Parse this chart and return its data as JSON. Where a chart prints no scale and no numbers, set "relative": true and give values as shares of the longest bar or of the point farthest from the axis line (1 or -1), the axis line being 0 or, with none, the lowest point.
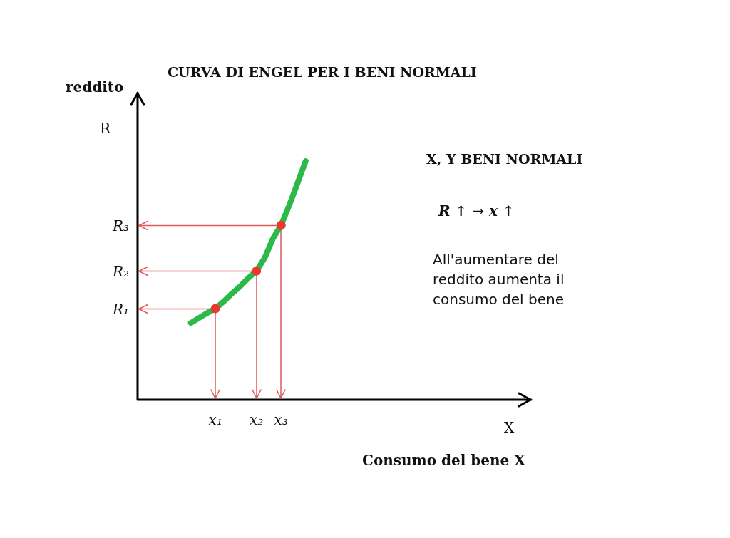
{
  "chart_data": {
    "type": "line",
    "title": "CURVA DI ENGEL PER I BENI NORMALI",
    "ylabel": "reddito",
    "xlabel": "Consumo del bene X",
    "annotations": [
      "R",
      "X",
      "X, Y BENI NORMALI",
      "R ↑ →   x ↑",
      "All'aumentare del reddito aumenta il consumo del bene"
    ],
    "relative": true,
    "tick_labels": "x",
    "legend": false,
    "marker": "circle",
    "line_style": "solid",
    "categories": [
      null,
      null,
      null,
      null,
      null,
      null,
      null,
      null,
      null,
      "x₁",
      null,
      null,
      null,
      null,
      "x₂",
      null,
      null,
      "x₃",
      null,
      null,
      null,
      null,
      null,
      null,
      null,
      null,
      null,
      null,
      null,
      null,
      null,
      null,
      null,
      null,
      null,
      null,
      null,
      null,
      null,
      null,
      null,
      null,
      null,
      null,
      null,
      null,
      null,
      null
    ],
    "series": [
      {
        "color": "#2db84a",
        "marker": "none",
        "values": [
          null,
          null,
          null,
          null,
          null,
          null,
          0.322,
          0.343,
          0.364,
          0.382,
          0.412,
          0.445,
          0.475,
          0.51,
          0.54,
          0.594,
          0.675,
          0.731,
          0.815,
          0.907,
          1,
          null,
          null,
          null,
          null,
          null,
          null,
          null,
          null,
          null,
          null,
          null,
          null,
          null,
          null,
          null,
          null,
          null,
          null,
          null,
          null,
          null,
          null,
          null,
          null,
          null,
          null,
          null
        ]
      },
      {
        "type": "scatter",
        "color": "#e8392e",
        "x": [
          "x₁",
          "x₂",
          "x₃"
        ],
        "values": [
          0.382,
          0.54,
          0.731
        ]
      }
    ],
    "ref_lines": [
      {
        "axis": "y",
        "value": 0.382,
        "label": "R₁",
        "color": "#e05a5a"
      },
      {
        "axis": "y",
        "value": 0.54,
        "label": "R₂",
        "color": "#e05a5a"
      },
      {
        "axis": "y",
        "value": 0.731,
        "label": "R₃",
        "color": "#e05a5a"
      }
    ]
  }
}
